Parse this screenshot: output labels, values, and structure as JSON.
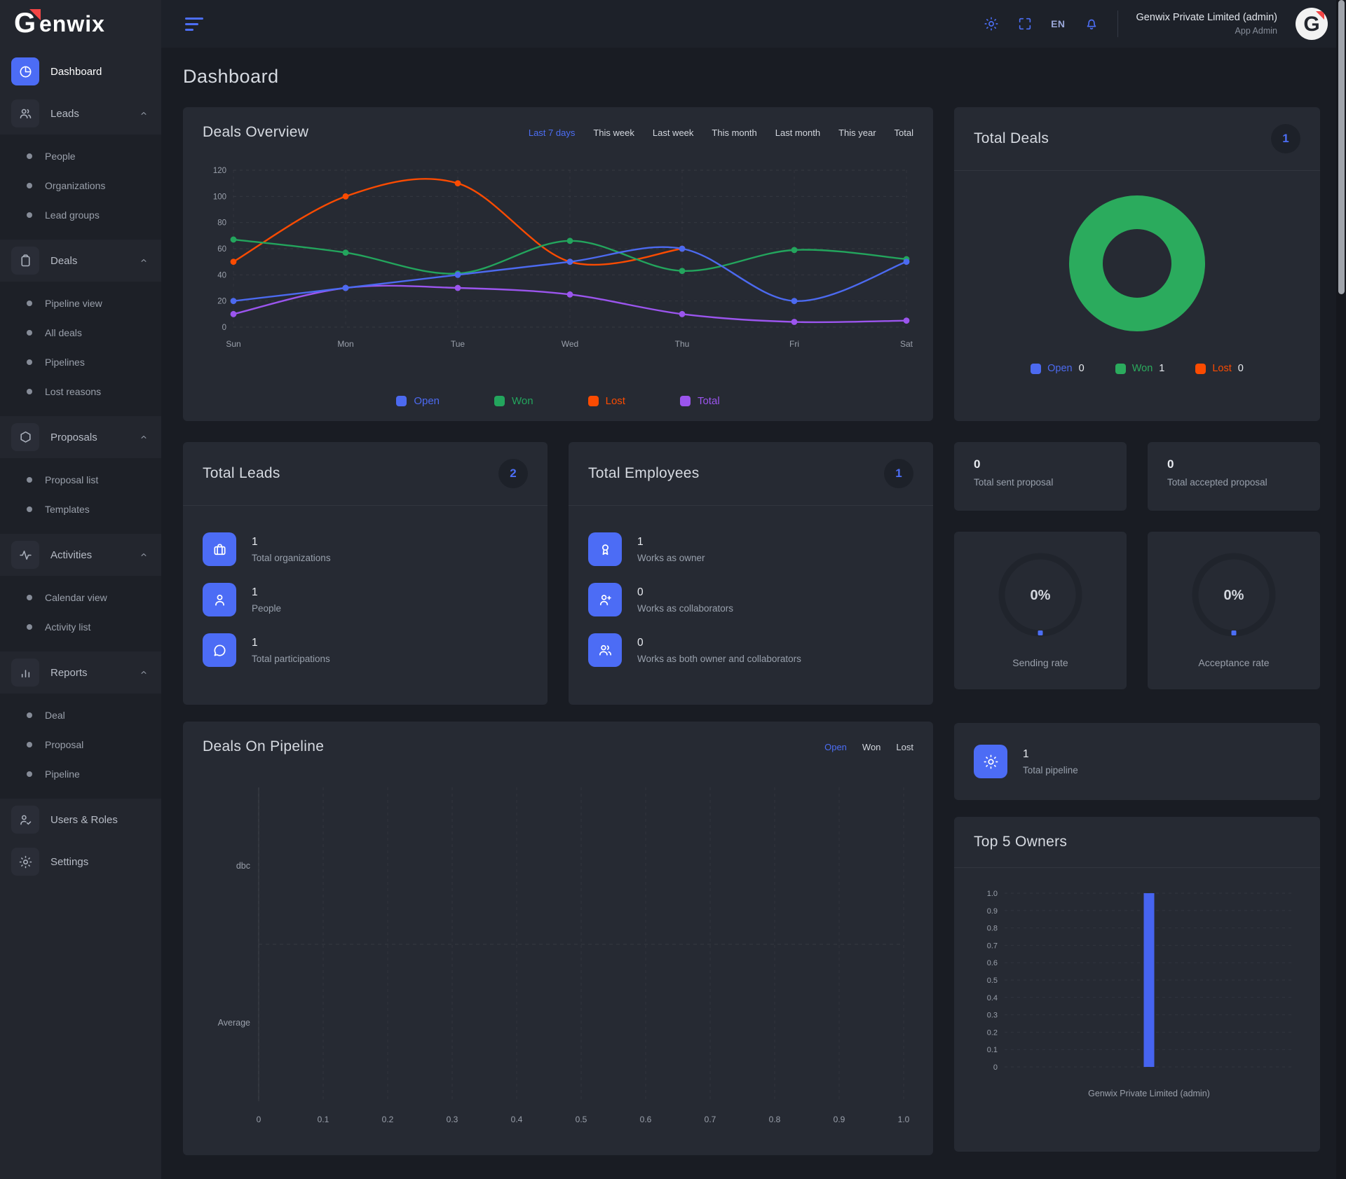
{
  "brand": {
    "name": "Genwix"
  },
  "topbar": {
    "language": "EN",
    "account_name": "Genwix Private Limited (admin)",
    "account_role": "App Admin"
  },
  "page_title": "Dashboard",
  "colors": {
    "accent": "#4c6ef5",
    "open": "#4c6af0",
    "won": "#23a55d",
    "lost": "#fb4b01",
    "total": "#9b55ee",
    "donut_won": "#2bab5d",
    "owners_bar": "#4664f0"
  },
  "sidebar": {
    "items": [
      {
        "label": "Dashboard",
        "icon": "pie-chart",
        "active": true,
        "children": []
      },
      {
        "label": "Leads",
        "icon": "users",
        "expanded": true,
        "children": [
          "People",
          "Organizations",
          "Lead groups"
        ]
      },
      {
        "label": "Deals",
        "icon": "clipboard",
        "expanded": true,
        "children": [
          "Pipeline view",
          "All deals",
          "Pipelines",
          "Lost reasons"
        ]
      },
      {
        "label": "Proposals",
        "icon": "hexagon",
        "expanded": true,
        "children": [
          "Proposal list",
          "Templates"
        ]
      },
      {
        "label": "Activities",
        "icon": "activity",
        "expanded": true,
        "children": [
          "Calendar view",
          "Activity list"
        ]
      },
      {
        "label": "Reports",
        "icon": "bar-chart",
        "expanded": true,
        "children": [
          "Deal",
          "Proposal",
          "Pipeline"
        ]
      },
      {
        "label": "Users & Roles",
        "icon": "user-check",
        "children": []
      },
      {
        "label": "Settings",
        "icon": "gear",
        "children": []
      }
    ]
  },
  "deals_overview": {
    "title": "Deals Overview",
    "filters": [
      "Last 7 days",
      "This week",
      "Last week",
      "This month",
      "Last month",
      "This year",
      "Total"
    ],
    "active_filter": "Last 7 days"
  },
  "total_deals": {
    "title": "Total Deals",
    "badge": "1",
    "legend": [
      {
        "label": "Open",
        "value": "0",
        "color": "#4c6af0"
      },
      {
        "label": "Won",
        "value": "1",
        "color": "#2bab5d"
      },
      {
        "label": "Lost",
        "value": "0",
        "color": "#fb4b01"
      }
    ]
  },
  "total_leads": {
    "title": "Total Leads",
    "badge": "2",
    "rows": [
      {
        "icon": "briefcase",
        "value": "1",
        "label": "Total organizations"
      },
      {
        "icon": "user",
        "value": "1",
        "label": "People"
      },
      {
        "icon": "chat",
        "value": "1",
        "label": "Total participations"
      }
    ]
  },
  "total_employees": {
    "title": "Total Employees",
    "badge": "1",
    "rows": [
      {
        "icon": "award",
        "value": "1",
        "label": "Works as owner"
      },
      {
        "icon": "user-plus",
        "value": "0",
        "label": "Works as collaborators"
      },
      {
        "icon": "users",
        "value": "0",
        "label": "Works as both owner and collaborators"
      }
    ]
  },
  "proposal_stats": [
    {
      "value": "0",
      "label": "Total sent proposal"
    },
    {
      "value": "0",
      "label": "Total accepted proposal"
    }
  ],
  "gauges": [
    {
      "percent": "0%",
      "label": "Sending rate"
    },
    {
      "percent": "0%",
      "label": "Acceptance rate"
    }
  ],
  "total_pipeline": {
    "value": "1",
    "label": "Total pipeline",
    "icon": "sun"
  },
  "deals_on_pipeline": {
    "title": "Deals On Pipeline",
    "tabs": [
      "Open",
      "Won",
      "Lost"
    ],
    "active_tab": "Open"
  },
  "top_owners": {
    "title": "Top 5 Owners"
  },
  "chart_data": [
    {
      "id": "deals_overview",
      "type": "line",
      "title": "Deals Overview",
      "x": [
        "Sun",
        "Mon",
        "Tue",
        "Wed",
        "Thu",
        "Fri",
        "Sat"
      ],
      "ylim": [
        0,
        120
      ],
      "yticks": [
        0,
        20,
        40,
        60,
        80,
        100,
        120
      ],
      "grid": true,
      "legend_position": "bottom",
      "series": [
        {
          "name": "Open",
          "color": "#4c6af0",
          "values": [
            20,
            30,
            40,
            50,
            60,
            20,
            50
          ]
        },
        {
          "name": "Won",
          "color": "#23a55d",
          "values": [
            67,
            57,
            41,
            66,
            43,
            59,
            52
          ]
        },
        {
          "name": "Lost",
          "color": "#fb4b01",
          "values": [
            50,
            100,
            110,
            50,
            60,
            null,
            null
          ]
        },
        {
          "name": "Total",
          "color": "#9b55ee",
          "values": [
            10,
            30,
            30,
            25,
            10,
            4,
            5
          ]
        }
      ],
      "draw_order": [
        "Lost",
        "Won",
        "Total",
        "Open"
      ]
    },
    {
      "id": "total_deals",
      "type": "pie",
      "title": "Total Deals",
      "donut": true,
      "labels": [
        "Open",
        "Won",
        "Lost"
      ],
      "values": [
        0,
        1,
        0
      ],
      "colors": [
        "#4c6af0",
        "#2bab5d",
        "#fb4b01"
      ],
      "legend_position": "bottom"
    },
    {
      "id": "deals_on_pipeline",
      "type": "bar",
      "title": "Deals On Pipeline",
      "orientation": "horizontal",
      "categories": [
        "dbc",
        "Average"
      ],
      "values": [
        0,
        0
      ],
      "xlim": [
        0,
        1
      ],
      "xticks": [
        0,
        0.1,
        0.2,
        0.3,
        0.4,
        0.5,
        0.6,
        0.7,
        0.8,
        0.9,
        1.0
      ],
      "grid": true
    },
    {
      "id": "top_5_owners",
      "type": "bar",
      "title": "Top 5 Owners",
      "categories": [
        "Genwix Private Limited (admin)"
      ],
      "values": [
        1.0
      ],
      "ylim": [
        0,
        1
      ],
      "yticks": [
        0,
        0.1,
        0.2,
        0.3,
        0.4,
        0.5,
        0.6,
        0.7,
        0.8,
        0.9,
        1.0
      ],
      "grid": true,
      "bar_color": "#4664f0"
    }
  ]
}
